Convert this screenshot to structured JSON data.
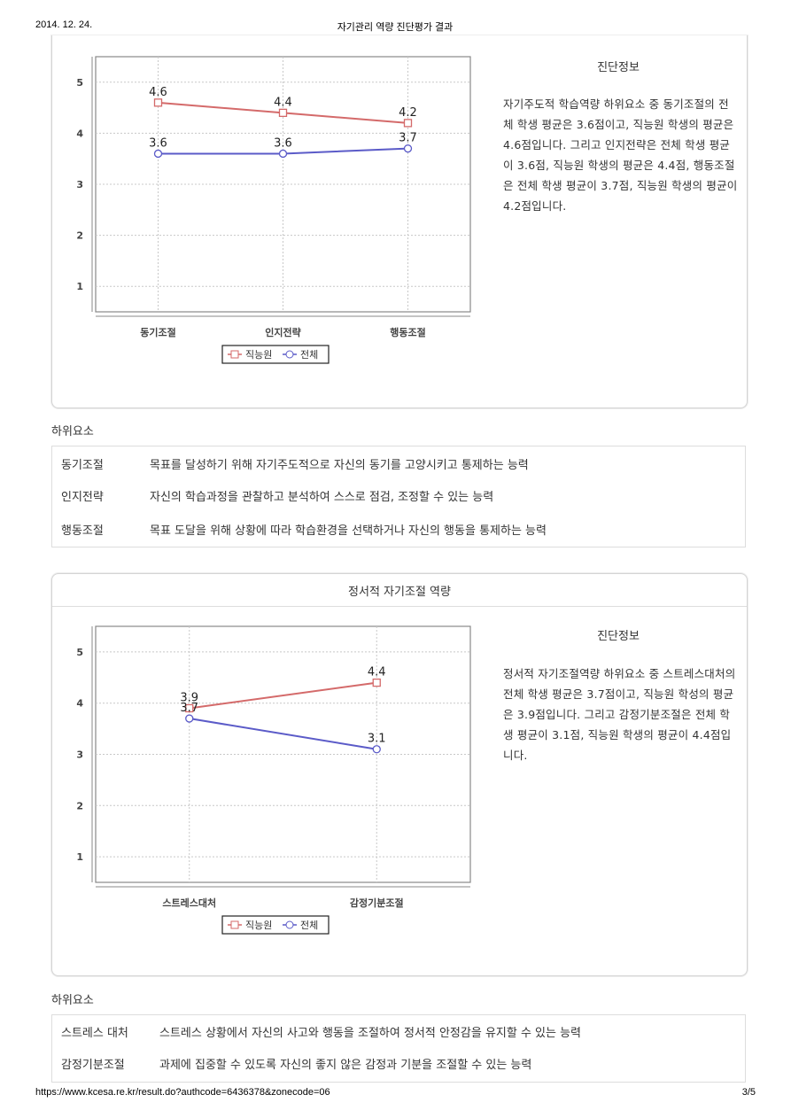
{
  "header": {
    "date": "2014. 12. 24.",
    "title": "자기관리 역량 진단평가 결과"
  },
  "footer": {
    "url": "https://www.kcesa.re.kr/result.do?authcode=6436378&zonecode=06",
    "page": "3/5"
  },
  "colors": {
    "series1": "#d46a6a",
    "series2": "#5b5bc8",
    "grid": "#c8c8c8"
  },
  "section1": {
    "info_title": "진단정보",
    "info_text": "자기주도적 학습역량 하위요소 중 동기조절의 전체 학생 평균은 3.6점이고, 직능원 학생의 평균은 4.6점입니다. 그리고 인지전략은 전체 학생 평균이 3.6점, 직능원 학생의 평균은 4.4점, 행동조절은 전체 학생 평균이 3.7점, 직능원 학생의 평균이 4.2점입니다.",
    "sub_label": "하위요소",
    "sub_items": [
      {
        "name": "동기조절",
        "desc": "목표를 달성하기 위해 자기주도적으로 자신의 동기를 고양시키고 통제하는 능력"
      },
      {
        "name": "인지전략",
        "desc": "자신의 학습과정을 관찰하고 분석하여 스스로 점검, 조정할 수 있는 능력"
      },
      {
        "name": "행동조절",
        "desc": "목표 도달을 위해 상황에 따라 학습환경을 선택하거나 자신의 행동을 통제하는 능력"
      }
    ]
  },
  "section2": {
    "panel_title": "정서적 자기조절 역량",
    "info_title": "진단정보",
    "info_text": "정서적 자기조절역량 하위요소 중 스트레스대처의 전체 학생 평균은 3.7점이고, 직능원 학성의 평균은 3.9점입니다. 그리고 감정기분조절은 전체 학생 평균이 3.1점, 직능원 학생의 평균이 4.4점입니다.",
    "sub_label": "하위요소",
    "sub_items": [
      {
        "name": "스트레스 대처",
        "desc": "스트레스 상황에서 자신의 사고와 행동을 조절하여 정서적 안정감을 유지할 수 있는 능력"
      },
      {
        "name": "감정기분조절",
        "desc": "과제에 집중할 수 있도록 자신의 좋지 않은 감정과 기분을 조절할 수 있는 능력"
      }
    ]
  },
  "chart_data": [
    {
      "type": "line",
      "categories": [
        "동기조절",
        "인지전략",
        "행동조절"
      ],
      "series": [
        {
          "name": "직능원",
          "values": [
            4.6,
            4.4,
            4.2
          ],
          "marker": "square"
        },
        {
          "name": "전체",
          "values": [
            3.6,
            3.6,
            3.7
          ],
          "marker": "circle"
        }
      ],
      "yticks": [
        1,
        2,
        3,
        4,
        5
      ],
      "ylim": [
        0.5,
        5.5
      ],
      "grid": true,
      "legend": "bottom"
    },
    {
      "type": "line",
      "categories": [
        "스트레스대처",
        "감정기분조절"
      ],
      "series": [
        {
          "name": "직능원",
          "values": [
            3.9,
            4.4
          ],
          "marker": "square"
        },
        {
          "name": "전체",
          "values": [
            3.7,
            3.1
          ],
          "marker": "circle"
        }
      ],
      "yticks": [
        1,
        2,
        3,
        4,
        5
      ],
      "ylim": [
        0.5,
        5.5
      ],
      "grid": true,
      "legend": "bottom"
    }
  ]
}
